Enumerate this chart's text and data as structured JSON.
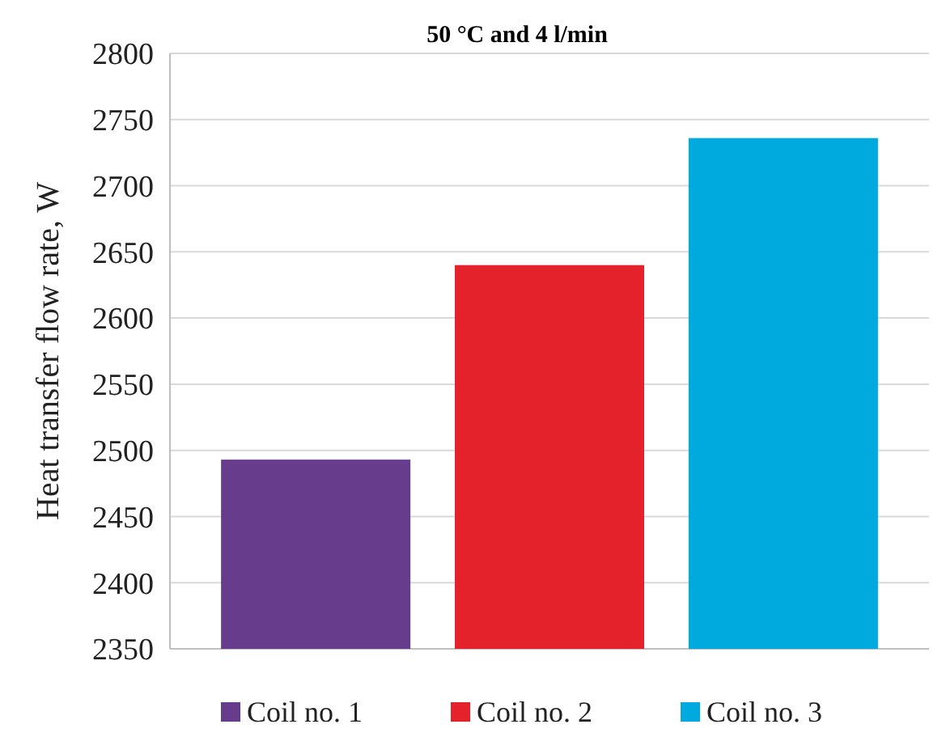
{
  "chart_data": {
    "type": "bar",
    "title": "50 °C and 4 l/min",
    "ylabel": "Heat transfer flow rate, W",
    "categories": [
      null
    ],
    "series": [
      {
        "name": "Coil no. 1",
        "color": "#673c8c",
        "values": [
          2493
        ]
      },
      {
        "name": "Coil no. 2",
        "color": "#e3222b",
        "values": [
          2640
        ]
      },
      {
        "name": "Coil no. 3",
        "color": "#00a9de",
        "values": [
          2736
        ]
      }
    ],
    "ylim": [
      2350,
      2800
    ],
    "yticks": [
      2350,
      2400,
      2450,
      2500,
      2550,
      2600,
      2650,
      2700,
      2750,
      2800
    ],
    "grid": "y",
    "legend": "bottom"
  }
}
